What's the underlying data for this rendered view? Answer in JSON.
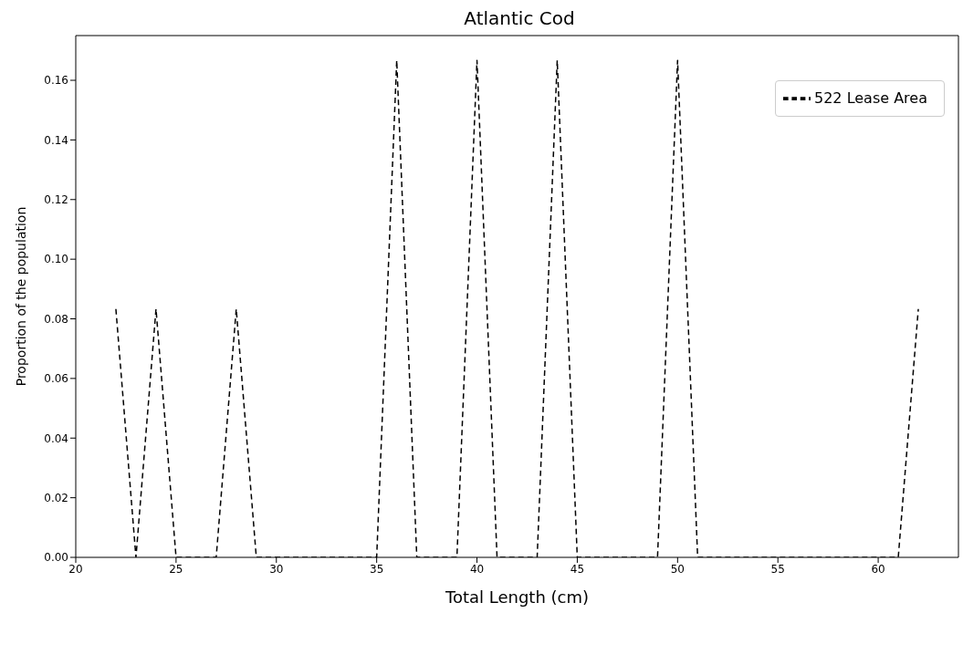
{
  "chart_data": {
    "type": "line",
    "title": "Atlantic Cod",
    "xlabel": "Total Length (cm)",
    "ylabel": "Proportion of the population",
    "x": [
      22,
      23,
      24,
      25,
      26,
      27,
      28,
      29,
      30,
      31,
      32,
      33,
      34,
      35,
      36,
      37,
      38,
      39,
      40,
      41,
      42,
      43,
      44,
      45,
      46,
      47,
      48,
      49,
      50,
      51,
      52,
      53,
      54,
      55,
      56,
      57,
      58,
      59,
      60,
      61,
      62
    ],
    "series": [
      {
        "name": "522 Lease Area",
        "color": "#000000",
        "values": [
          0.0833,
          0,
          0.0833,
          0,
          0,
          0,
          0.0833,
          0,
          0,
          0,
          0,
          0,
          0,
          0,
          0.1667,
          0,
          0,
          0,
          0.1667,
          0,
          0,
          0,
          0.1667,
          0,
          0,
          0,
          0,
          0,
          0.1667,
          0,
          0,
          0,
          0,
          0,
          0,
          0,
          0,
          0,
          0,
          0,
          0.0833
        ]
      }
    ],
    "xlim": [
      20,
      64
    ],
    "ylim": [
      0,
      0.175
    ],
    "xticks": [
      20,
      25,
      30,
      35,
      40,
      45,
      50,
      55,
      60
    ],
    "yticks": [
      {
        "value": 0,
        "label": "0.00"
      },
      {
        "value": 0.02,
        "label": "0.02"
      },
      {
        "value": 0.04,
        "label": "0.04"
      },
      {
        "value": 0.06,
        "label": "0.06"
      },
      {
        "value": 0.08,
        "label": "0.08"
      },
      {
        "value": 0.1,
        "label": "0.10"
      },
      {
        "value": 0.12,
        "label": "0.12"
      },
      {
        "value": 0.14,
        "label": "0.14"
      },
      {
        "value": 0.16,
        "label": "0.16"
      }
    ],
    "legend": "top right",
    "line_style": "dashed"
  }
}
